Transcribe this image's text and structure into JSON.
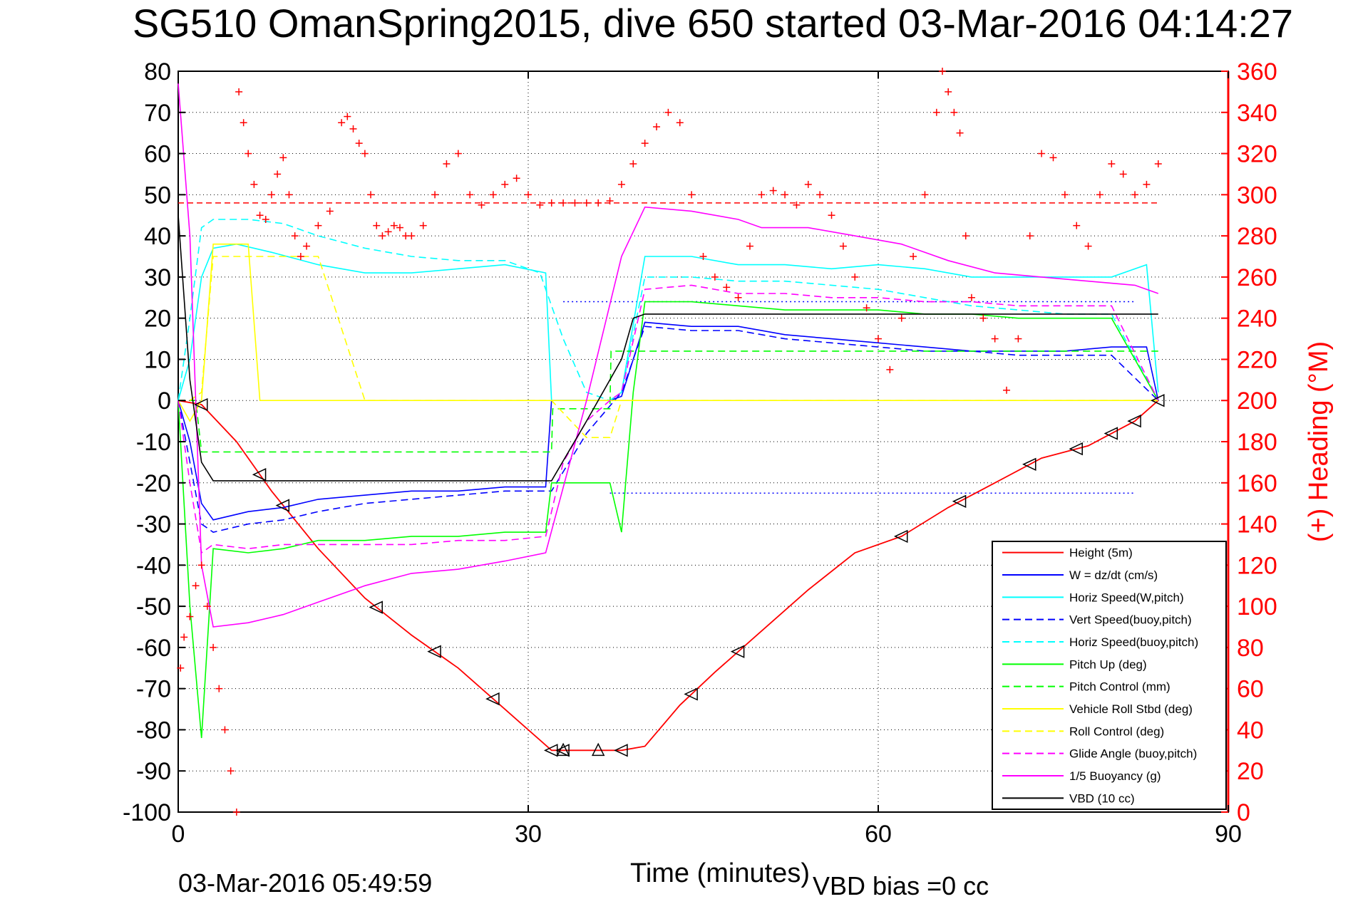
{
  "chart_data": {
    "type": "line",
    "title": "SG510 OmanSpring2015, dive 650 started 03-Mar-2016 04:14:27",
    "xlabel": "Time (minutes)",
    "ylabel_right": "(+) Heading (°M)",
    "footer_left": "03-Mar-2016 05:49:59",
    "footer_right": "VBD bias =0 cc",
    "xlim": [
      0,
      90
    ],
    "ylim": [
      -100,
      80
    ],
    "ylim_right": [
      0,
      360
    ],
    "x_ticks": [
      "0",
      "30",
      "60",
      "90"
    ],
    "x_tick_values": [
      0,
      30,
      60,
      90
    ],
    "y_ticks": [
      "80",
      "70",
      "60",
      "50",
      "40",
      "30",
      "20",
      "10",
      "0",
      "-10",
      "-20",
      "-30",
      "-40",
      "-50",
      "-60",
      "-70",
      "-80",
      "-90",
      "-100"
    ],
    "y_tick_values": [
      80,
      70,
      60,
      50,
      40,
      30,
      20,
      10,
      0,
      -10,
      -20,
      -30,
      -40,
      -50,
      -60,
      -70,
      -80,
      -90,
      -100
    ],
    "y_right_ticks": [
      "360",
      "340",
      "320",
      "300",
      "280",
      "260",
      "240",
      "220",
      "200",
      "180",
      "160",
      "140",
      "120",
      "100",
      "80",
      "60",
      "40",
      "20",
      "0"
    ],
    "y_right_tick_values": [
      360,
      340,
      320,
      300,
      280,
      260,
      240,
      220,
      200,
      180,
      160,
      140,
      120,
      100,
      80,
      60,
      40,
      20,
      0
    ],
    "grid": true,
    "legend_position": "bottom-right",
    "colors": {
      "red": "#ff0000",
      "blue": "#0000ff",
      "cyan": "#00ffff",
      "green": "#00ff00",
      "yellow": "#ffff00",
      "magenta": "#ff00ff",
      "black": "#000000"
    },
    "series": [
      {
        "name": "Height (5m)",
        "color": "#ff0000",
        "dash": "solid",
        "axis": "left",
        "x": [
          0,
          2,
          5,
          8,
          12,
          16,
          20,
          24,
          28,
          32,
          35,
          38,
          40,
          43,
          46,
          50,
          54,
          58,
          62,
          66,
          70,
          74,
          78,
          82,
          84
        ],
        "y": [
          0,
          -1,
          -10,
          -22,
          -36,
          -48,
          -57,
          -65,
          -75,
          -85,
          -85,
          -85,
          -84,
          -74,
          -66,
          -56,
          -46,
          -37,
          -33,
          -26,
          -20,
          -14,
          -11,
          -5,
          0
        ]
      },
      {
        "name": "W = dz/dt (cm/s)",
        "color": "#0000ff",
        "dash": "solid",
        "axis": "left",
        "x": [
          0,
          1,
          2,
          3,
          6,
          9,
          12,
          16,
          20,
          24,
          28,
          31.5,
          32,
          34,
          37,
          38,
          40,
          44,
          48,
          52,
          56,
          60,
          64,
          68,
          72,
          76,
          80,
          83,
          84
        ],
        "y": [
          0,
          -10,
          -25,
          -29,
          -27,
          -26,
          -24,
          -23,
          -22,
          -22,
          -21,
          -21,
          0,
          0,
          0,
          1,
          19,
          18,
          18,
          16,
          15,
          14,
          13,
          12,
          12,
          12,
          13,
          13,
          0
        ]
      },
      {
        "name": "Horiz Speed(W,pitch)",
        "color": "#00ffff",
        "dash": "solid",
        "axis": "left",
        "x": [
          0,
          1,
          2,
          3,
          5,
          8,
          12,
          16,
          20,
          24,
          28,
          31.5,
          32,
          34,
          37,
          38,
          40,
          44,
          48,
          52,
          56,
          60,
          64,
          68,
          72,
          76,
          80,
          83,
          84
        ],
        "y": [
          0,
          10,
          30,
          37,
          38,
          36,
          33,
          31,
          31,
          32,
          33,
          31,
          0,
          0,
          0,
          2,
          35,
          35,
          33,
          33,
          32,
          33,
          32,
          30,
          30,
          30,
          30,
          33,
          2
        ]
      },
      {
        "name": "Vert Speed(buoy,pitch)",
        "color": "#0000ff",
        "dash": "dashed",
        "axis": "left",
        "x": [
          0,
          1,
          2,
          3,
          6,
          9,
          12,
          16,
          20,
          24,
          28,
          32,
          35,
          38,
          40,
          44,
          48,
          52,
          56,
          60,
          64,
          68,
          72,
          76,
          80,
          84
        ],
        "y": [
          0,
          -15,
          -30,
          -32,
          -30,
          -29,
          -27,
          -25,
          -24,
          -23,
          -22,
          -22,
          -8,
          2,
          18,
          17,
          17,
          15,
          14,
          13,
          12,
          12,
          11,
          11,
          11,
          0
        ]
      },
      {
        "name": "Horiz Speed(buoy,pitch)",
        "color": "#00ffff",
        "dash": "dashed",
        "axis": "left",
        "x": [
          0,
          1,
          2,
          3,
          6,
          9,
          12,
          16,
          20,
          24,
          28,
          31,
          33,
          35,
          37,
          38,
          40,
          44,
          48,
          52,
          56,
          60,
          64,
          68,
          72,
          76,
          80,
          84
        ],
        "y": [
          0,
          20,
          42,
          44,
          44,
          43,
          40,
          37,
          35,
          34,
          34,
          31,
          15,
          2,
          0,
          2,
          30,
          30,
          29,
          29,
          28,
          27,
          25,
          23,
          22,
          21,
          21,
          0
        ]
      },
      {
        "name": "Pitch Up (deg)",
        "color": "#00ff00",
        "dash": "solid",
        "axis": "left",
        "x": [
          0,
          1,
          2,
          3,
          6,
          9,
          12,
          16,
          20,
          24,
          28,
          31.5,
          32,
          35,
          37,
          38,
          39,
          40,
          44,
          48,
          52,
          56,
          60,
          64,
          68,
          72,
          76,
          80,
          84
        ],
        "y": [
          0,
          -50,
          -82,
          -36,
          -37,
          -36,
          -34,
          -34,
          -33,
          -33,
          -32,
          -32,
          -20,
          -20,
          -20,
          -32,
          2,
          24,
          24,
          23,
          22,
          22,
          22,
          21,
          21,
          20,
          20,
          20,
          0
        ]
      },
      {
        "name": "Pitch Control (mm)",
        "color": "#00ff00",
        "dash": "dashed",
        "axis": "left",
        "x": [
          0,
          1.5,
          2,
          20,
          32,
          32.1,
          37,
          37.1,
          84
        ],
        "y": [
          0,
          0,
          -12.5,
          -12.5,
          -12.5,
          -2,
          -2,
          12,
          12
        ]
      },
      {
        "name": "Vehicle Roll Stbd (deg)",
        "color": "#ffff00",
        "dash": "solid",
        "axis": "left",
        "x": [
          0,
          1,
          2,
          3,
          6,
          7,
          8,
          12,
          16,
          20,
          24,
          28,
          30,
          32,
          33,
          38,
          40,
          44,
          48,
          52,
          56,
          60,
          64,
          68,
          72,
          76,
          80,
          84
        ],
        "y": [
          0,
          -5,
          0,
          38,
          38,
          0,
          0,
          0,
          0,
          0,
          0,
          0,
          0,
          0,
          0,
          0,
          0,
          0,
          0,
          0,
          0,
          0,
          0,
          0,
          0,
          0,
          0,
          0
        ]
      },
      {
        "name": "Roll Control (deg)",
        "color": "#ffff00",
        "dash": "dashed",
        "axis": "left",
        "x": [
          0,
          1,
          2,
          3,
          6,
          9,
          12,
          16,
          20,
          24,
          28,
          32,
          35,
          37,
          38,
          40,
          44,
          48,
          52,
          56,
          60,
          64,
          68,
          72,
          76,
          80,
          84
        ],
        "y": [
          0,
          0,
          2,
          35,
          35,
          35,
          35,
          0,
          0,
          0,
          0,
          0,
          -9,
          -9,
          0,
          0,
          0,
          0,
          0,
          0,
          0,
          0,
          0,
          0,
          0,
          0,
          0
        ]
      },
      {
        "name": "Glide Angle (buoy,pitch)",
        "color": "#ff00ff",
        "dash": "dashed",
        "axis": "left",
        "x": [
          0,
          1,
          2,
          3,
          6,
          9,
          12,
          16,
          20,
          24,
          28,
          31.5,
          33,
          35,
          37,
          38,
          40,
          44,
          48,
          52,
          56,
          60,
          64,
          68,
          72,
          76,
          80,
          84
        ],
        "y": [
          0,
          -20,
          -37,
          -35,
          -36,
          -35,
          -35,
          -35,
          -35,
          -34,
          -34,
          -33,
          -15,
          -5,
          0,
          2,
          27,
          28,
          26,
          26,
          25,
          25,
          24,
          24,
          23,
          23,
          23,
          0
        ]
      },
      {
        "name": "1/5 Buoyancy (g)",
        "color": "#ff00ff",
        "dash": "solid",
        "axis": "left",
        "x": [
          0,
          1,
          2,
          3,
          6,
          9,
          12,
          16,
          20,
          24,
          28,
          31.5,
          35,
          38,
          40,
          44,
          48,
          50,
          54,
          58,
          62,
          66,
          70,
          74,
          78,
          82,
          84
        ],
        "y": [
          77,
          40,
          -40,
          -55,
          -54,
          -52,
          -49,
          -45,
          -42,
          -41,
          -39,
          -37,
          0,
          35,
          47,
          46,
          44,
          42,
          42,
          40,
          38,
          34,
          31,
          30,
          29,
          28,
          26
        ]
      },
      {
        "name": "VBD (10 cc)",
        "color": "#000000",
        "dash": "solid",
        "axis": "left",
        "x": [
          0,
          1,
          2,
          3,
          10,
          20,
          30,
          32,
          35,
          38,
          39,
          40,
          50,
          60,
          70,
          84
        ],
        "y": [
          45,
          5,
          -15,
          -19.5,
          -19.5,
          -19.5,
          -19.5,
          -19.5,
          -5,
          10,
          20,
          21,
          21,
          21,
          21,
          21
        ]
      }
    ],
    "heading_points": {
      "name": "(+) Heading (°M)",
      "marker": "+",
      "color": "#ff0000",
      "axis": "right",
      "x": [
        0.2,
        0.5,
        1,
        1.5,
        2,
        2.5,
        3,
        3.5,
        4,
        4.5,
        5,
        5.2,
        5.6,
        6,
        6.5,
        7,
        7.5,
        8,
        8.5,
        9,
        9.5,
        10,
        10.5,
        11,
        12,
        13,
        14,
        14.5,
        15,
        15.5,
        16,
        16.5,
        17,
        17.5,
        18,
        18.5,
        19,
        19.5,
        20,
        21,
        22,
        23,
        24,
        25,
        26,
        27,
        28,
        29,
        30,
        31,
        32,
        33,
        34,
        35,
        36,
        37,
        38,
        39,
        40,
        41,
        42,
        43,
        44,
        45,
        46,
        47,
        48,
        49,
        50,
        51,
        52,
        53,
        54,
        55,
        56,
        57,
        58,
        59,
        60,
        61,
        62,
        63,
        64,
        65,
        65.5,
        66,
        66.5,
        67,
        67.5,
        68,
        69,
        70,
        71,
        72,
        73,
        74,
        75,
        76,
        77,
        78,
        79,
        80,
        81,
        82,
        83,
        84
      ],
      "y": [
        70,
        85,
        95,
        110,
        120,
        100,
        80,
        60,
        40,
        20,
        0,
        350,
        335,
        320,
        305,
        290,
        288,
        300,
        310,
        318,
        300,
        280,
        270,
        275,
        285,
        292,
        335,
        338,
        332,
        325,
        320,
        300,
        285,
        280,
        282,
        285,
        284,
        280,
        280,
        285,
        300,
        315,
        320,
        300,
        295,
        300,
        305,
        308,
        300,
        295,
        296,
        296,
        296,
        296,
        296,
        297,
        305,
        315,
        325,
        333,
        340,
        335,
        300,
        270,
        260,
        255,
        250,
        275,
        300,
        302,
        300,
        295,
        305,
        300,
        290,
        275,
        260,
        245,
        230,
        215,
        240,
        270,
        300,
        340,
        360,
        350,
        340,
        330,
        280,
        250,
        240,
        230,
        205,
        230,
        280,
        320,
        318,
        300,
        285,
        275,
        300,
        315,
        310,
        300,
        305,
        315
      ]
    },
    "vbd_bias_line": {
      "axis": "right",
      "y": 296,
      "color": "#ff0000",
      "dash": "dashed"
    },
    "reference_lines": [
      {
        "axis": "left",
        "y": 24,
        "color": "#0000ff",
        "dash": "dotted",
        "x_range": [
          33,
          82
        ]
      },
      {
        "axis": "left",
        "y": -22.5,
        "color": "#0000ff",
        "dash": "dotted",
        "x_range": [
          37,
          82
        ]
      }
    ],
    "depth_markers": {
      "triangle_left_x": [
        2,
        7,
        9,
        17,
        22,
        27,
        32,
        33,
        38,
        44,
        48,
        62,
        67,
        73,
        77,
        80,
        82,
        84
      ],
      "triangle_up_x": [
        33,
        36
      ]
    }
  }
}
